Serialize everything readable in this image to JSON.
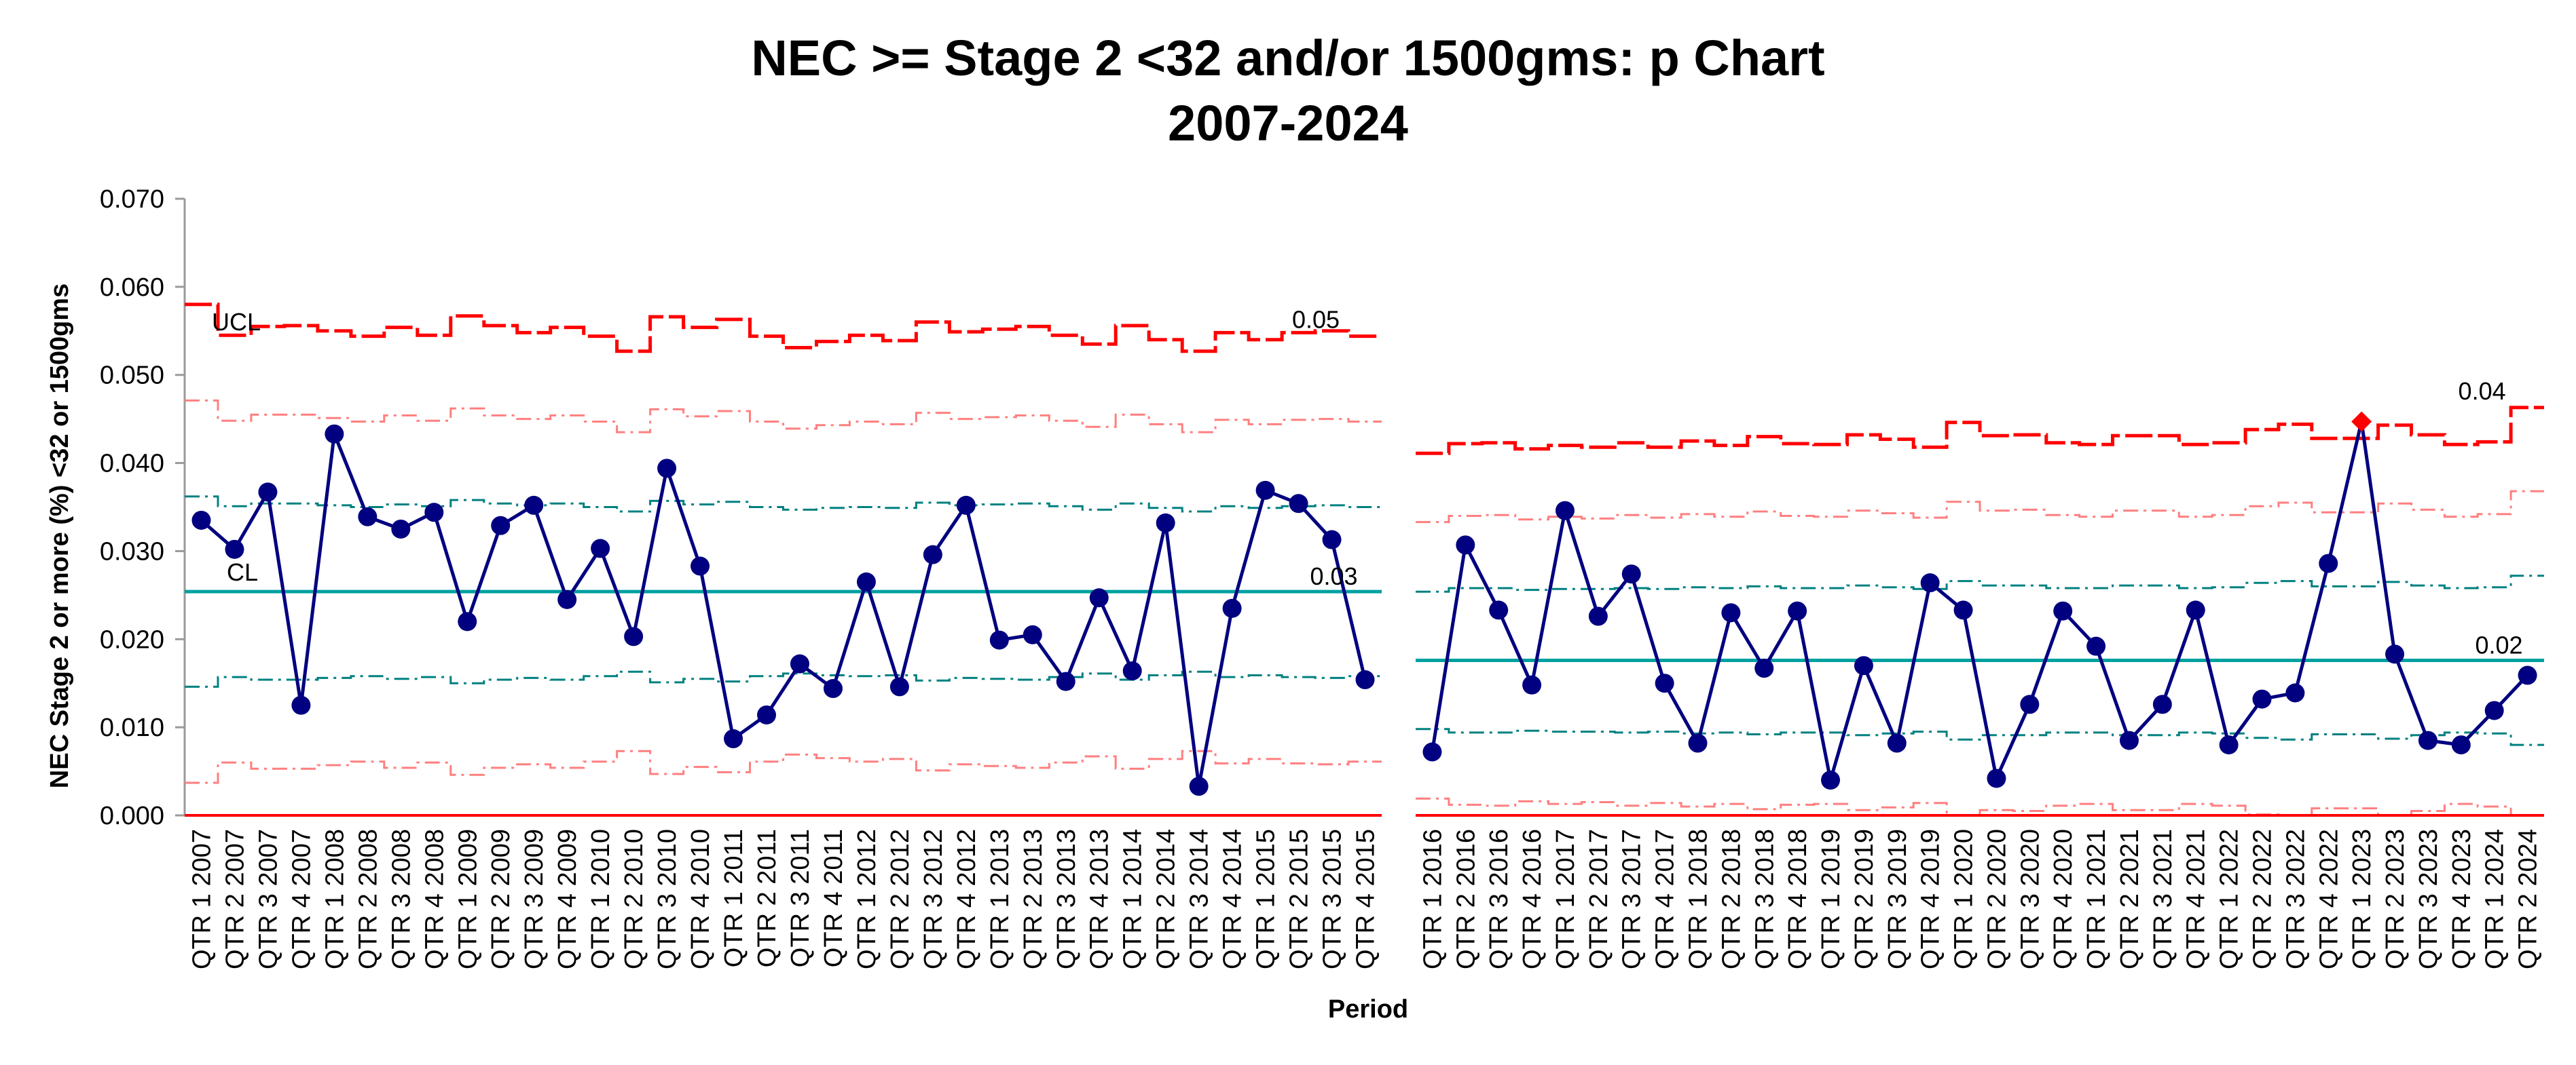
{
  "chart_data": {
    "type": "line",
    "title": "NEC >= Stage 2 <32 and/or 1500gms: p Chart",
    "subtitle": "2007-2024",
    "xlabel": "Period",
    "ylabel": "NEC Stage 2 or more (%) <32 or 1500gms",
    "ylim": [
      0,
      0.07
    ],
    "yticks": [
      "0.000",
      "0.010",
      "0.020",
      "0.030",
      "0.040",
      "0.050",
      "0.060",
      "0.070"
    ],
    "grid": false,
    "colors": {
      "data": "#000080",
      "ucl": "#ff0000",
      "sigma2": "#ff7f7f",
      "sigma1": "#008080",
      "cl": "#00a0a0",
      "special_cause": "#ff0000"
    },
    "segments": [
      {
        "categories": [
          "QTR 1 2007",
          "QTR 2 2007",
          "QTR 3 2007",
          "QTR 4 2007",
          "QTR 1 2008",
          "QTR 2 2008",
          "QTR 3 2008",
          "QTR 4 2008",
          "QTR 1 2009",
          "QTR 2 2009",
          "QTR 3 2009",
          "QTR 4 2009",
          "QTR 1 2010",
          "QTR 2 2010",
          "QTR 3 2010",
          "QTR 4 2010",
          "QTR 1 2011",
          "QTR 2 2011",
          "QTR 3 2011",
          "QTR 4 2011",
          "QTR 1 2012",
          "QTR 2 2012",
          "QTR 3 2012",
          "QTR 4 2012",
          "QTR 1 2013",
          "QTR 2 2013",
          "QTR 3 2013",
          "QTR 4 2013",
          "QTR 1 2014",
          "QTR 2 2014",
          "QTR 3 2014",
          "QTR 4 2014",
          "QTR 1 2015",
          "QTR 2 2015",
          "QTR 3 2015",
          "QTR 4 2015"
        ],
        "values": [
          0.0335,
          0.0302,
          0.0367,
          0.0125,
          0.0433,
          0.0339,
          0.0325,
          0.0344,
          0.022,
          0.0329,
          0.0352,
          0.0245,
          0.0303,
          0.0203,
          0.0394,
          0.0283,
          0.0087,
          0.0114,
          0.0172,
          0.0144,
          0.0265,
          0.0146,
          0.0296,
          0.0352,
          0.0199,
          0.0205,
          0.0152,
          0.0247,
          0.0164,
          0.0332,
          0.0033,
          0.0235,
          0.0369,
          0.0354,
          0.0313,
          0.0154
        ],
        "cl": 0.0254,
        "ucl": [
          0.058,
          0.0545,
          0.0555,
          0.0556,
          0.055,
          0.0544,
          0.0554,
          0.0545,
          0.0567,
          0.0556,
          0.0548,
          0.0554,
          0.0544,
          0.0527,
          0.0566,
          0.0554,
          0.0563,
          0.0544,
          0.0531,
          0.0538,
          0.0545,
          0.0539,
          0.056,
          0.0549,
          0.0552,
          0.0555,
          0.0545,
          0.0535,
          0.0556,
          0.054,
          0.0527,
          0.0548,
          0.054,
          0.0548,
          0.055,
          0.0544
        ],
        "upper_2sigma": [
          0.0471,
          0.0448,
          0.0455,
          0.0455,
          0.0451,
          0.0447,
          0.0454,
          0.0448,
          0.0462,
          0.0454,
          0.045,
          0.0454,
          0.0447,
          0.0435,
          0.0461,
          0.0453,
          0.0459,
          0.0447,
          0.0439,
          0.0443,
          0.0447,
          0.0444,
          0.0457,
          0.045,
          0.0452,
          0.0454,
          0.0448,
          0.0441,
          0.0455,
          0.0444,
          0.0435,
          0.0449,
          0.0444,
          0.0449,
          0.045,
          0.0447
        ],
        "upper_1sigma": [
          0.0362,
          0.0351,
          0.0354,
          0.0354,
          0.0352,
          0.035,
          0.0353,
          0.0351,
          0.0358,
          0.0354,
          0.0352,
          0.0354,
          0.035,
          0.0345,
          0.0357,
          0.0353,
          0.0356,
          0.035,
          0.0347,
          0.0349,
          0.035,
          0.0349,
          0.0355,
          0.0352,
          0.0353,
          0.0354,
          0.0351,
          0.0347,
          0.0354,
          0.0349,
          0.0345,
          0.0351,
          0.0349,
          0.0351,
          0.0352,
          0.035
        ],
        "lower_1sigma": [
          0.0146,
          0.0157,
          0.0154,
          0.0154,
          0.0156,
          0.0158,
          0.0155,
          0.0157,
          0.015,
          0.0154,
          0.0156,
          0.0154,
          0.0158,
          0.0163,
          0.0151,
          0.0155,
          0.0152,
          0.0158,
          0.0161,
          0.0159,
          0.0158,
          0.0159,
          0.0153,
          0.0156,
          0.0155,
          0.0154,
          0.0157,
          0.0161,
          0.0154,
          0.0159,
          0.0163,
          0.0157,
          0.0159,
          0.0157,
          0.0156,
          0.0158
        ],
        "lower_2sigma": [
          0.0037,
          0.006,
          0.0053,
          0.0053,
          0.0057,
          0.0061,
          0.0054,
          0.006,
          0.0046,
          0.0054,
          0.0058,
          0.0054,
          0.0061,
          0.0073,
          0.0047,
          0.0055,
          0.0049,
          0.0061,
          0.0069,
          0.0065,
          0.0061,
          0.0064,
          0.0051,
          0.0058,
          0.0056,
          0.0054,
          0.006,
          0.0067,
          0.0053,
          0.0064,
          0.0073,
          0.0059,
          0.0064,
          0.0059,
          0.0058,
          0.0061
        ],
        "lcl": 0.0,
        "labels": {
          "ucl_tag": "UCL",
          "cl_tag": "CL",
          "ucl_value": "0.05",
          "cl_value": "0.03"
        }
      },
      {
        "categories": [
          "QTR 1 2016",
          "QTR 2 2016",
          "QTR 3 2016",
          "QTR 4 2016",
          "QTR 1 2017",
          "QTR 2 2017",
          "QTR 3 2017",
          "QTR 4 2017",
          "QTR 1 2018",
          "QTR 2 2018",
          "QTR 3 2018",
          "QTR 4 2018",
          "QTR 1 2019",
          "QTR 2 2019",
          "QTR 3 2019",
          "QTR 4 2019",
          "QTR 1 2020",
          "QTR 2 2020",
          "QTR 3 2020",
          "QTR 4 2020",
          "QTR 1 2021",
          "QTR 2 2021",
          "QTR 3 2021",
          "QTR 4 2021",
          "QTR 1 2022",
          "QTR 2 2022",
          "QTR 3 2022",
          "QTR 4 2022",
          "QTR 1 2023",
          "QTR 2 2023",
          "QTR 3 2023",
          "QTR 4 2023",
          "QTR 1 2024",
          "QTR 2 2024"
        ],
        "values": [
          0.0072,
          0.0307,
          0.0233,
          0.0148,
          0.0346,
          0.0226,
          0.0274,
          0.015,
          0.0082,
          0.023,
          0.0167,
          0.0232,
          0.004,
          0.017,
          0.0082,
          0.0264,
          0.0233,
          0.0042,
          0.0126,
          0.0232,
          0.0192,
          0.0085,
          0.0126,
          0.0233,
          0.008,
          0.0132,
          0.0139,
          0.0286,
          0.0447,
          0.0183,
          0.0085,
          0.008,
          0.0119,
          0.0159
        ],
        "special_cause_index": 28,
        "cl": 0.0176,
        "ucl": [
          0.0411,
          0.0422,
          0.0423,
          0.0416,
          0.042,
          0.0418,
          0.0423,
          0.0418,
          0.0425,
          0.042,
          0.043,
          0.0422,
          0.0421,
          0.0432,
          0.0427,
          0.0418,
          0.0446,
          0.0431,
          0.0432,
          0.0423,
          0.0421,
          0.0431,
          0.0431,
          0.0421,
          0.0423,
          0.0438,
          0.0444,
          0.0428,
          0.0428,
          0.0443,
          0.0432,
          0.0421,
          0.0424,
          0.0463
        ],
        "upper_2sigma": [
          0.0333,
          0.034,
          0.0341,
          0.0336,
          0.0339,
          0.0337,
          0.0341,
          0.0338,
          0.0342,
          0.0339,
          0.0345,
          0.034,
          0.0339,
          0.0346,
          0.0343,
          0.0338,
          0.0356,
          0.0346,
          0.0347,
          0.0341,
          0.0339,
          0.0346,
          0.0346,
          0.0339,
          0.0341,
          0.0351,
          0.0355,
          0.0344,
          0.0344,
          0.0354,
          0.0347,
          0.0339,
          0.0342,
          0.0368
        ],
        "upper_1sigma": [
          0.0254,
          0.0258,
          0.0258,
          0.0256,
          0.0257,
          0.0257,
          0.0258,
          0.0257,
          0.0259,
          0.0258,
          0.026,
          0.0258,
          0.0258,
          0.0261,
          0.0259,
          0.0257,
          0.0266,
          0.0261,
          0.0261,
          0.0258,
          0.0258,
          0.0261,
          0.0261,
          0.0258,
          0.0259,
          0.0264,
          0.0266,
          0.026,
          0.026,
          0.0265,
          0.0261,
          0.0258,
          0.0259,
          0.0272
        ],
        "lower_1sigma": [
          0.0098,
          0.0094,
          0.0094,
          0.0096,
          0.0095,
          0.0095,
          0.0094,
          0.0095,
          0.0093,
          0.0094,
          0.0092,
          0.0094,
          0.0094,
          0.0091,
          0.0093,
          0.0095,
          0.0086,
          0.0091,
          0.0091,
          0.0094,
          0.0094,
          0.0091,
          0.0091,
          0.0094,
          0.0093,
          0.0088,
          0.0086,
          0.0092,
          0.0092,
          0.0087,
          0.0091,
          0.0094,
          0.0093,
          0.008
        ],
        "lower_2sigma": [
          0.0019,
          0.0012,
          0.0011,
          0.0016,
          0.0013,
          0.0015,
          0.0011,
          0.0014,
          0.001,
          0.0013,
          0.0007,
          0.0012,
          0.0013,
          0.0006,
          0.0009,
          0.0014,
          0.0,
          0.0006,
          0.0005,
          0.0011,
          0.0013,
          0.0006,
          0.0006,
          0.0013,
          0.0011,
          0.0001,
          0.0,
          0.0008,
          0.0008,
          0.0,
          0.0005,
          0.0013,
          0.001,
          0.0
        ],
        "lcl": 0.0,
        "labels": {
          "ucl_value": "0.04",
          "cl_value": "0.02"
        }
      }
    ]
  }
}
